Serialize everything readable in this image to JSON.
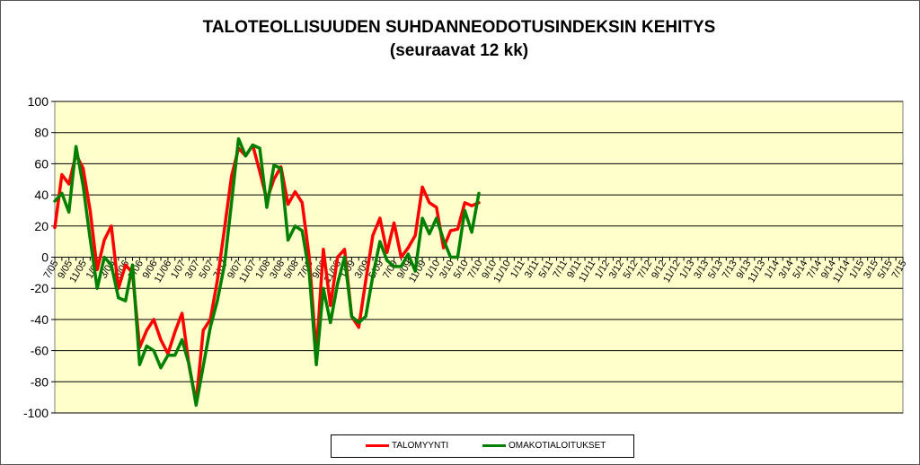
{
  "chart_data": {
    "type": "line",
    "title_line1": "TALOTEOLLISUUDEN SUHDANNEODOTUSINDEKSIN KEHITYS",
    "title_line2": "(seuraavat 12 kk)",
    "xlabel": "",
    "ylabel": "",
    "ylim": [
      -100,
      100
    ],
    "yticks": [
      100,
      80,
      60,
      40,
      20,
      0,
      -20,
      -40,
      -60,
      -80,
      -100
    ],
    "grid": true,
    "legend_position": "bottom",
    "x": [
      "7/05",
      "8/05",
      "9/05",
      "10/05",
      "11/05",
      "12/05",
      "1/06",
      "2/06",
      "3/06",
      "4/06",
      "5/06",
      "6/06",
      "7/06",
      "8/06",
      "9/06",
      "10/06",
      "11/06",
      "12/06",
      "1/07",
      "2/07",
      "3/07",
      "4/07",
      "5/07",
      "6/07",
      "7/07",
      "8/07",
      "9/07",
      "10/07",
      "11/07",
      "12/07",
      "1/08",
      "2/08",
      "3/08",
      "4/08",
      "5/08",
      "6/08",
      "7/08",
      "8/08",
      "9/08",
      "10/08",
      "11/08",
      "12/08",
      "1/09",
      "2/09",
      "3/09",
      "4/09",
      "5/09",
      "6/09",
      "7/09",
      "8/09",
      "9/09",
      "10/09",
      "11/09",
      "12/09",
      "1/10",
      "2/10",
      "3/10",
      "4/10",
      "5/10",
      "6/10",
      "7/10",
      "8/10",
      "9/10",
      "10/10",
      "11/10",
      "12/10",
      "1/11",
      "2/11",
      "3/11",
      "4/11",
      "5/11",
      "6/11",
      "7/11",
      "8/11",
      "9/11",
      "10/11",
      "11/11",
      "12/11",
      "1/12",
      "2/12",
      "3/12",
      "4/12",
      "5/12",
      "6/12",
      "7/12",
      "8/12",
      "9/12",
      "10/12",
      "11/12",
      "12/12",
      "1/13",
      "2/13",
      "3/13",
      "4/13",
      "5/13",
      "6/13",
      "7/13",
      "8/13",
      "9/13",
      "10/13",
      "11/13",
      "12/13",
      "1/14",
      "2/14",
      "3/14",
      "4/14",
      "5/14",
      "6/14",
      "7/14",
      "8/14",
      "9/14",
      "10/14",
      "11/14",
      "12/14",
      "1/15",
      "2/15",
      "3/15",
      "4/15",
      "5/15",
      "6/15",
      "7/15"
    ],
    "xtick_labels": [
      "7/05",
      "9/05",
      "11/05",
      "1/06",
      "3/06",
      "5/06",
      "7/06",
      "9/06",
      "11/06",
      "1/07",
      "3/07",
      "5/07",
      "7/07",
      "9/07",
      "11/07",
      "1/08",
      "3/08",
      "5/08",
      "7/08",
      "9/08",
      "11/08",
      "1/09",
      "3/09",
      "5/09",
      "7/09",
      "9/09",
      "11/09",
      "1/10",
      "3/10",
      "5/10",
      "7/10",
      "9/10",
      "11/10",
      "1/11",
      "3/11",
      "5/11",
      "7/11",
      "9/11",
      "11/11",
      "1/12",
      "3/12",
      "5/12",
      "7/12",
      "9/12",
      "11/12",
      "1/13",
      "3/13",
      "5/13",
      "7/13",
      "9/13",
      "11/13",
      "1/14",
      "3/14",
      "5/14",
      "7/14",
      "9/14",
      "11/14",
      "1/15",
      "3/15",
      "5/15",
      "7/15"
    ],
    "series": [
      {
        "name": "TALOMYYNTI",
        "color": "#ff0000",
        "points": [
          {
            "x": "7/05",
            "y": 19
          },
          {
            "x": "8/05",
            "y": 53
          },
          {
            "x": "9/05",
            "y": 47
          },
          {
            "x": "10/05",
            "y": 66
          },
          {
            "x": "11/05",
            "y": 57
          },
          {
            "x": "12/05",
            "y": 30
          },
          {
            "x": "1/06",
            "y": -8
          },
          {
            "x": "2/06",
            "y": 11
          },
          {
            "x": "3/06",
            "y": 20
          },
          {
            "x": "4/06",
            "y": -20
          },
          {
            "x": "5/06",
            "y": -5
          },
          {
            "x": "6/06",
            "y": -10
          },
          {
            "x": "7/06",
            "y": -58
          },
          {
            "x": "8/06",
            "y": -47
          },
          {
            "x": "9/06",
            "y": -40
          },
          {
            "x": "10/06",
            "y": -53
          },
          {
            "x": "11/06",
            "y": -62
          },
          {
            "x": "12/06",
            "y": -48
          },
          {
            "x": "1/07",
            "y": -36
          },
          {
            "x": "2/07",
            "y": -70
          },
          {
            "x": "3/07",
            "y": -93
          },
          {
            "x": "4/07",
            "y": -47
          },
          {
            "x": "5/07",
            "y": -40
          },
          {
            "x": "6/07",
            "y": -15
          },
          {
            "x": "7/07",
            "y": 18
          },
          {
            "x": "8/07",
            "y": 52
          },
          {
            "x": "9/07",
            "y": 70
          },
          {
            "x": "10/07",
            "y": 65
          },
          {
            "x": "11/07",
            "y": 72
          },
          {
            "x": "12/07",
            "y": 55
          },
          {
            "x": "1/08",
            "y": 37
          },
          {
            "x": "2/08",
            "y": 50
          },
          {
            "x": "3/08",
            "y": 58
          },
          {
            "x": "4/08",
            "y": 34
          },
          {
            "x": "5/08",
            "y": 42
          },
          {
            "x": "6/08",
            "y": 35
          },
          {
            "x": "7/08",
            "y": 0
          },
          {
            "x": "8/08",
            "y": -62
          },
          {
            "x": "9/08",
            "y": 5
          },
          {
            "x": "10/08",
            "y": -31
          },
          {
            "x": "11/08",
            "y": 0
          },
          {
            "x": "12/08",
            "y": 5
          },
          {
            "x": "1/09",
            "y": -38
          },
          {
            "x": "2/09",
            "y": -45
          },
          {
            "x": "3/09",
            "y": -15
          },
          {
            "x": "4/09",
            "y": 14
          },
          {
            "x": "5/09",
            "y": 25
          },
          {
            "x": "6/09",
            "y": 3
          },
          {
            "x": "7/09",
            "y": 22
          },
          {
            "x": "8/09",
            "y": 0
          },
          {
            "x": "9/09",
            "y": 6
          },
          {
            "x": "10/09",
            "y": 14
          },
          {
            "x": "11/09",
            "y": 45
          },
          {
            "x": "12/09",
            "y": 35
          },
          {
            "x": "1/10",
            "y": 32
          },
          {
            "x": "2/10",
            "y": 6
          },
          {
            "x": "3/10",
            "y": 17
          },
          {
            "x": "4/10",
            "y": 18
          },
          {
            "x": "5/10",
            "y": 35
          },
          {
            "x": "6/10",
            "y": 33
          },
          {
            "x": "7/10",
            "y": 35
          }
        ]
      },
      {
        "name": "OMAKOTIALOITUKSET",
        "color": "#008000",
        "points": [
          {
            "x": "7/05",
            "y": 36
          },
          {
            "x": "8/05",
            "y": 41
          },
          {
            "x": "9/05",
            "y": 29
          },
          {
            "x": "10/05",
            "y": 71
          },
          {
            "x": "11/05",
            "y": 46
          },
          {
            "x": "12/05",
            "y": 12
          },
          {
            "x": "1/06",
            "y": -20
          },
          {
            "x": "2/06",
            "y": 0
          },
          {
            "x": "3/06",
            "y": -5
          },
          {
            "x": "4/06",
            "y": -26
          },
          {
            "x": "5/06",
            "y": -28
          },
          {
            "x": "6/06",
            "y": -5
          },
          {
            "x": "7/06",
            "y": -69
          },
          {
            "x": "8/06",
            "y": -57
          },
          {
            "x": "9/06",
            "y": -60
          },
          {
            "x": "10/06",
            "y": -71
          },
          {
            "x": "11/06",
            "y": -63
          },
          {
            "x": "12/06",
            "y": -63
          },
          {
            "x": "1/07",
            "y": -53
          },
          {
            "x": "2/07",
            "y": -69
          },
          {
            "x": "3/07",
            "y": -95
          },
          {
            "x": "4/07",
            "y": -70
          },
          {
            "x": "5/07",
            "y": -45
          },
          {
            "x": "6/07",
            "y": -28
          },
          {
            "x": "7/07",
            "y": -5
          },
          {
            "x": "8/07",
            "y": 35
          },
          {
            "x": "9/07",
            "y": 76
          },
          {
            "x": "10/07",
            "y": 65
          },
          {
            "x": "11/07",
            "y": 72
          },
          {
            "x": "12/07",
            "y": 70
          },
          {
            "x": "1/08",
            "y": 32
          },
          {
            "x": "2/08",
            "y": 59
          },
          {
            "x": "3/08",
            "y": 57
          },
          {
            "x": "4/08",
            "y": 11
          },
          {
            "x": "5/08",
            "y": 20
          },
          {
            "x": "6/08",
            "y": 17
          },
          {
            "x": "7/08",
            "y": -10
          },
          {
            "x": "8/08",
            "y": -69
          },
          {
            "x": "9/08",
            "y": -20
          },
          {
            "x": "10/08",
            "y": -42
          },
          {
            "x": "11/08",
            "y": -17
          },
          {
            "x": "12/08",
            "y": 0
          },
          {
            "x": "1/09",
            "y": -38
          },
          {
            "x": "2/09",
            "y": -42
          },
          {
            "x": "3/09",
            "y": -38
          },
          {
            "x": "4/09",
            "y": -12
          },
          {
            "x": "5/09",
            "y": 10
          },
          {
            "x": "6/09",
            "y": -2
          },
          {
            "x": "7/09",
            "y": -6
          },
          {
            "x": "8/09",
            "y": -6
          },
          {
            "x": "9/09",
            "y": 2
          },
          {
            "x": "10/09",
            "y": -9
          },
          {
            "x": "11/09",
            "y": 25
          },
          {
            "x": "12/09",
            "y": 15
          },
          {
            "x": "1/10",
            "y": 25
          },
          {
            "x": "2/10",
            "y": 11
          },
          {
            "x": "3/10",
            "y": 0
          },
          {
            "x": "4/10",
            "y": 0
          },
          {
            "x": "5/10",
            "y": 30
          },
          {
            "x": "6/10",
            "y": 16
          },
          {
            "x": "7/10",
            "y": 41
          }
        ]
      }
    ]
  }
}
